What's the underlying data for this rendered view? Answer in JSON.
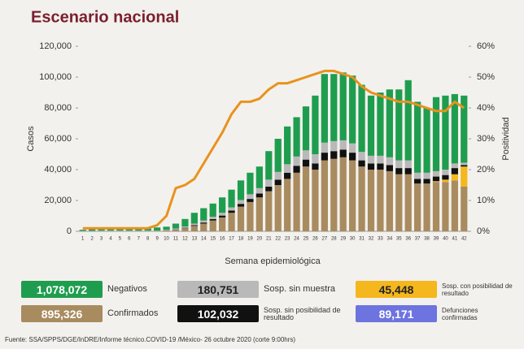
{
  "chart_data": {
    "type": "bar",
    "title": "Escenario nacional",
    "y_label": "Casos",
    "y2_label": "Positividad",
    "x_label": "Semana epidemiológica",
    "categories": [
      "1",
      "2",
      "3",
      "4",
      "5",
      "6",
      "7",
      "8",
      "9",
      "10",
      "11",
      "12",
      "13",
      "14",
      "15",
      "16",
      "17",
      "18",
      "19",
      "20",
      "21",
      "22",
      "23",
      "24",
      "25",
      "26",
      "27",
      "28",
      "29",
      "30",
      "31",
      "32",
      "33",
      "34",
      "35",
      "36",
      "37",
      "38",
      "39",
      "40",
      "41",
      "42"
    ],
    "ylim": [
      0,
      120000
    ],
    "yticks": [
      0,
      {
        "value": 20000,
        "label": "20,000"
      },
      {
        "value": 40000,
        "label": "40,000"
      },
      {
        "value": 60000,
        "label": "60,000"
      },
      {
        "value": 80000,
        "label": "80,000"
      },
      {
        "value": 100000,
        "label": "100,000"
      },
      {
        "value": 120000,
        "label": "120,000"
      }
    ],
    "y2lim": [
      0,
      60
    ],
    "y2ticks": [
      {
        "value": 0,
        "label": "0%"
      },
      {
        "value": 10,
        "label": "10%"
      },
      {
        "value": 20,
        "label": "20%"
      },
      {
        "value": 30,
        "label": "30%"
      },
      {
        "value": 40,
        "label": "40%"
      },
      {
        "value": 50,
        "label": "50%"
      },
      {
        "value": 60,
        "label": "60%"
      }
    ],
    "series": [
      {
        "name": "Confirmados",
        "total": "895,326",
        "color": "#a98b60",
        "values": [
          100,
          100,
          100,
          100,
          100,
          100,
          100,
          100,
          150,
          500,
          1000,
          2000,
          3500,
          5000,
          7000,
          9000,
          12000,
          16000,
          19000,
          22000,
          26000,
          30000,
          34000,
          38000,
          42000,
          40000,
          46000,
          47000,
          48000,
          46000,
          42000,
          40000,
          40000,
          39000,
          37000,
          37000,
          31000,
          31000,
          32000,
          32000,
          33000,
          29000
        ]
      },
      {
        "name": "Sosp. con posibilidad de resultado",
        "total": "45,448",
        "color": "#f4b71d",
        "values": [
          0,
          0,
          0,
          0,
          0,
          0,
          0,
          0,
          0,
          0,
          0,
          0,
          0,
          0,
          0,
          0,
          0,
          0,
          0,
          0,
          0,
          0,
          0,
          0,
          0,
          0,
          0,
          0,
          0,
          0,
          0,
          0,
          0,
          0,
          0,
          0,
          0,
          0,
          500,
          1500,
          4000,
          13000
        ]
      },
      {
        "name": "Sosp. sin posibilidad de resultado",
        "total": "102,032",
        "color": "#111111",
        "values": [
          0,
          0,
          0,
          0,
          0,
          0,
          0,
          0,
          0,
          100,
          200,
          300,
          500,
          700,
          900,
          1200,
          1500,
          1800,
          2000,
          2500,
          3000,
          3500,
          4000,
          4500,
          4500,
          4000,
          5000,
          5000,
          5000,
          5000,
          4000,
          4000,
          4000,
          4000,
          4000,
          4000,
          3000,
          3000,
          3000,
          3000,
          4000,
          1000
        ]
      },
      {
        "name": "Sosp. sin muestra",
        "total": "180,751",
        "color": "#b9b9b9",
        "values": [
          200,
          200,
          300,
          300,
          300,
          300,
          300,
          300,
          300,
          400,
          600,
          800,
          1000,
          1300,
          1500,
          1800,
          2000,
          2500,
          3000,
          3500,
          4500,
          5000,
          5500,
          6000,
          6000,
          6000,
          6500,
          6500,
          6000,
          6000,
          5500,
          5000,
          5000,
          5000,
          5000,
          5000,
          4000,
          4000,
          3500,
          3500,
          3000,
          1500
        ]
      },
      {
        "name": "Negativos",
        "total": "1,078,072",
        "color": "#1f9d4f",
        "values": [
          700,
          1200,
          1600,
          2100,
          1600,
          1600,
          1600,
          1600,
          2050,
          2000,
          3200,
          4900,
          7000,
          8000,
          8600,
          10000,
          11500,
          12700,
          14000,
          14000,
          18500,
          21500,
          24500,
          25500,
          28500,
          38000,
          44500,
          43500,
          44000,
          44000,
          43500,
          39000,
          41000,
          44000,
          46000,
          52000,
          46000,
          42000,
          48000,
          48000,
          45000,
          43500
        ]
      }
    ],
    "line": {
      "axis": "y2",
      "color": "#e8921e",
      "values": [
        1,
        1,
        1,
        1,
        1,
        1,
        1,
        1,
        2,
        5,
        14,
        15,
        17,
        22,
        27,
        32,
        38,
        42,
        42,
        43,
        46,
        48,
        48,
        49,
        50,
        51,
        52,
        52,
        51,
        50,
        47,
        45,
        44,
        43,
        42,
        42,
        41,
        40,
        39,
        39,
        42,
        40
      ]
    },
    "extra": {
      "name": "Defunciones confirmadas",
      "total": "89,171",
      "color": "#6d74df"
    },
    "source": "Fuente: SSA/SPPS/DGE/InDRE/Informe técnico.COVID-19 /México- 26 octubre 2020 (corte 9:00hrs)"
  }
}
